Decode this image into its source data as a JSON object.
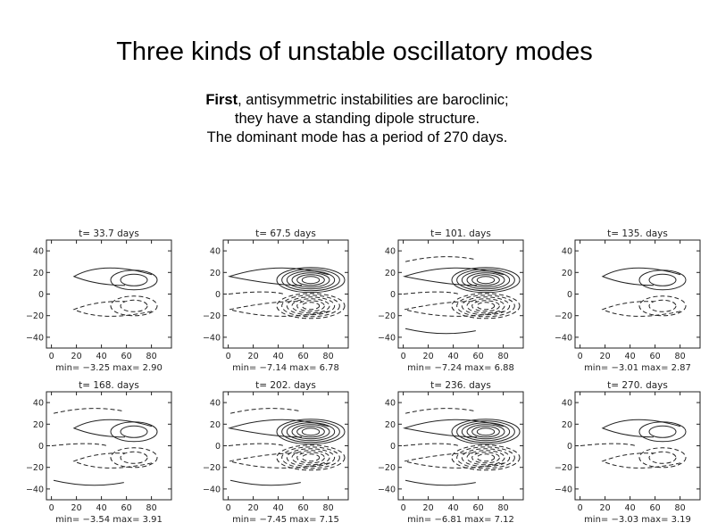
{
  "slide": {
    "title": "Three kinds of unstable oscillatory modes",
    "text": {
      "lead": "First",
      "line1_rest": ", antisymmetric instabilities are baroclinic;",
      "line2": "they have a standing dipole structure.",
      "line3": "The dominant mode has a period of 270 days."
    }
  },
  "panels": [
    {
      "label": "t=  33.7  days",
      "minmax": "min= −3.25  max=  2.90",
      "strength": 1,
      "extra": 0
    },
    {
      "label": "t=  67.5  days",
      "minmax": "min= −7.14  max=  6.78",
      "strength": 3,
      "extra": 1
    },
    {
      "label": "t=  101.  days",
      "minmax": "min= −7.24  max=  6.88",
      "strength": 3,
      "extra": 2
    },
    {
      "label": "t=  135.  days",
      "minmax": "min= −3.01  max=  2.87",
      "strength": 1,
      "extra": 0
    },
    {
      "label": "t=  168.  days",
      "minmax": "min= −3.54  max=  3.91",
      "strength": 1,
      "extra": 2
    },
    {
      "label": "t=  202.  days",
      "minmax": "min= −7.45  max=  7.15",
      "strength": 3,
      "extra": 2
    },
    {
      "label": "t=  236.  days",
      "minmax": "min= −6.81  max=  7.12",
      "strength": 3,
      "extra": 2
    },
    {
      "label": "t=  270.  days",
      "minmax": "min= −3.03  max=  3.19",
      "strength": 1,
      "extra": 1
    }
  ],
  "axes": {
    "y_ticks": [
      "40",
      "20",
      "0",
      "−20",
      "−40"
    ],
    "x_ticks": [
      "0",
      "20",
      "40",
      "60",
      "80"
    ]
  }
}
